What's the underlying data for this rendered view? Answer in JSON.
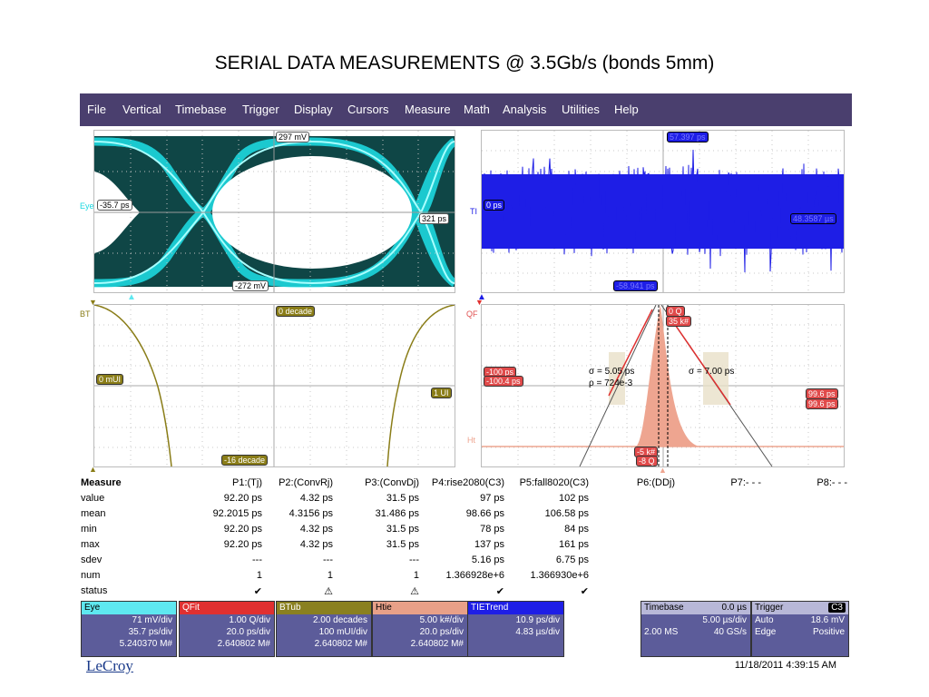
{
  "slide_title": "SERIAL DATA MEASUREMENTS @ 3.5Gb/s (bonds 5mm)",
  "menu": [
    "File",
    "Vertical",
    "Timebase",
    "Trigger",
    "Display",
    "Cursors",
    "Measure",
    "Math",
    "Analysis",
    "Utilities",
    "Help"
  ],
  "panels": {
    "eye": {
      "tag": "Eye",
      "labels": {
        "top": "297 mV",
        "left": "-35.7 ps",
        "right": "321 ps",
        "bottom": "-272 mV"
      }
    },
    "tie": {
      "tag": "TI",
      "labels": {
        "top": "57.397 ps",
        "left": "0 ps",
        "right": "48.3587 µs",
        "bottom": "-58.941 ps"
      }
    },
    "bathtub": {
      "tag": "BT",
      "labels": {
        "top": "0 decade",
        "left": "0 mUI",
        "right": "1 UI",
        "bottom": "-16 decade"
      }
    },
    "qfit": {
      "tag": "QF",
      "ht_tag": "Ht",
      "labels": {
        "top1": "0 Q",
        "top2": "35 k#",
        "left1": "-100 ps",
        "left2": "-100.4 ps",
        "right1": "99.6 ps",
        "right2": "99.6 ps",
        "bottom1": "-5 k#",
        "bottom2": "-8 Q"
      },
      "sigma_left": "σ = 5.05 ps",
      "rho": "ρ = 724e-3",
      "sigma_right": "σ = 7.00 ps"
    }
  },
  "measure": {
    "header": [
      "Measure",
      "P1:(Tj)",
      "P2:(ConvRj)",
      "P3:(ConvDj)",
      "P4:rise2080(C3)",
      "P5:fall8020(C3)",
      "P6:(DDj)",
      "P7:- - -",
      "P8:- - -"
    ],
    "rows": [
      {
        "name": "value",
        "cells": [
          "92.20 ps",
          "4.32 ps",
          "31.5 ps",
          "97 ps",
          "102 ps"
        ]
      },
      {
        "name": "mean",
        "cells": [
          "92.2015 ps",
          "4.3156 ps",
          "31.486 ps",
          "98.66 ps",
          "106.58 ps"
        ]
      },
      {
        "name": "min",
        "cells": [
          "92.20 ps",
          "4.32 ps",
          "31.5 ps",
          "78 ps",
          "84 ps"
        ]
      },
      {
        "name": "max",
        "cells": [
          "92.20 ps",
          "4.32 ps",
          "31.5 ps",
          "137 ps",
          "161 ps"
        ]
      },
      {
        "name": "sdev",
        "cells": [
          "---",
          "---",
          "---",
          "5.16 ps",
          "6.75 ps"
        ]
      },
      {
        "name": "num",
        "cells": [
          "1",
          "1",
          "1",
          "1.366928e+6",
          "1.366930e+6"
        ]
      },
      {
        "name": "status",
        "cells": [
          "✔",
          "⚠",
          "⚠",
          "✔",
          "✔"
        ]
      }
    ]
  },
  "channel_boxes": [
    {
      "title": "Eye",
      "color": "#5ee8f0",
      "lines": [
        "71 mV/div",
        "35.7 ps/div",
        "5.240370 M#"
      ]
    },
    {
      "title": "QFit",
      "color": "#e03030",
      "lines": [
        "1.00 Q/div",
        "20.0 ps/div",
        "2.640802 M#"
      ]
    },
    {
      "title": "BTub",
      "color": "#8a8020",
      "lines": [
        "2.00 decades",
        "100 mUI/div",
        "2.640802 M#"
      ]
    },
    {
      "title": "Htie",
      "color": "#e8a088",
      "lines": [
        "5.00 k#/div",
        "20.0 ps/div",
        "2.640802 M#"
      ]
    },
    {
      "title": "TIETrend",
      "color": "#1e1ee6",
      "lines": [
        "10.9 ps/div",
        "4.83 µs/div",
        ""
      ]
    }
  ],
  "timebase": {
    "title": "Timebase",
    "offset": "0.0 µs",
    "div": "5.00 µs/div",
    "rate_left": "2.00 MS",
    "rate_right": "40 GS/s"
  },
  "trigger": {
    "title": "Trigger",
    "channel": "C3",
    "mode": "Auto",
    "level": "18.6 mV",
    "type": "Edge",
    "slope": "Positive"
  },
  "brand": "LeCroy",
  "timestamp": "11/18/2011 4:39:15 AM",
  "colors": {
    "menubar": "#4a3f6e",
    "eye": "#1ad8e0",
    "tie": "#1e1ee6",
    "bathtub": "#8a7d18",
    "qfit": "#e05050",
    "hist": "#eea590"
  }
}
